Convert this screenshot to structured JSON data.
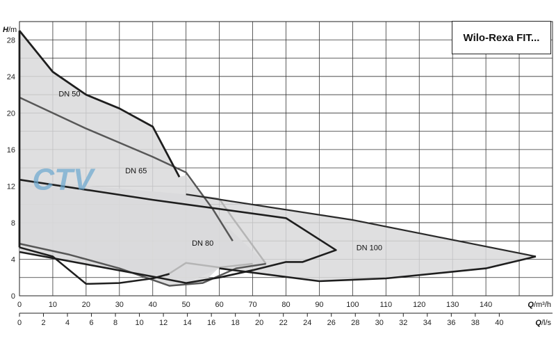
{
  "chart_data": {
    "type": "line",
    "title": "Wilo-Rexa FIT...",
    "y_axis": {
      "label_main": "H",
      "label_unit": "/m",
      "range": [
        0,
        30
      ],
      "ticks": [
        0,
        4,
        8,
        12,
        16,
        20,
        24,
        28
      ]
    },
    "x_axis_primary": {
      "label_main": "Q",
      "label_unit": "/m³/h",
      "range": [
        0,
        160
      ],
      "ticks": [
        0,
        10,
        20,
        30,
        40,
        50,
        60,
        70,
        80,
        90,
        100,
        110,
        120,
        130,
        140
      ]
    },
    "x_axis_secondary": {
      "label_main": "Q",
      "label_unit": "/l/s",
      "range": [
        0,
        44.44
      ],
      "ticks": [
        0,
        2,
        4,
        6,
        8,
        10,
        12,
        14,
        16,
        18,
        20,
        22,
        24,
        26,
        28,
        30,
        32,
        34,
        36,
        38,
        40
      ]
    },
    "grid": true,
    "watermark": "CTV",
    "series": [
      {
        "name": "DN 50",
        "color": "#1e1e1e",
        "upper": [
          [
            0,
            29
          ],
          [
            10,
            24.5
          ],
          [
            20,
            22
          ],
          [
            30,
            20.5
          ],
          [
            40,
            18.5
          ],
          [
            48,
            13
          ]
        ],
        "lower": [
          [
            0,
            5.3
          ],
          [
            10,
            4.3
          ],
          [
            20,
            1.3
          ],
          [
            30,
            1.4
          ],
          [
            40,
            1.9
          ],
          [
            45,
            2.4
          ]
        ]
      },
      {
        "name": "DN 65",
        "color": "#555555",
        "upper": [
          [
            0,
            21.7
          ],
          [
            20,
            18.3
          ],
          [
            40,
            15.2
          ],
          [
            50,
            13.5
          ],
          [
            58,
            9.5
          ],
          [
            64,
            6
          ]
        ],
        "lower": [
          [
            0,
            5.7
          ],
          [
            15,
            4.5
          ],
          [
            30,
            3.0
          ],
          [
            45,
            1.1
          ],
          [
            55,
            1.4
          ],
          [
            65,
            3.0
          ],
          [
            74,
            3.5
          ]
        ]
      },
      {
        "name": "DN 80",
        "color": "#aaaaaa",
        "upper": [
          [
            50,
            11.1
          ],
          [
            60,
            10.6
          ],
          [
            64,
            8.5
          ],
          [
            70,
            5.5
          ],
          [
            74,
            3.5
          ]
        ],
        "lower": [
          [
            50,
            3.6
          ],
          [
            60,
            3.1
          ],
          [
            70,
            3.5
          ]
        ]
      },
      {
        "name": "DN 100",
        "color": "#1e1e1e",
        "upper": [
          [
            0,
            12.7
          ],
          [
            40,
            10.5
          ],
          [
            80,
            8.5
          ],
          [
            95,
            5.0
          ],
          [
            85,
            3.7
          ],
          [
            60,
            2.0
          ],
          [
            50,
            1.4
          ],
          [
            40,
            2.1
          ],
          [
            0,
            4.8
          ]
        ],
        "lower": [
          [
            60,
            3.0
          ],
          [
            90,
            1.6
          ],
          [
            110,
            1.9
          ],
          [
            140,
            3.0
          ],
          [
            155,
            4.3
          ]
        ],
        "upper_ext": [
          [
            50,
            11.1
          ],
          [
            100,
            8.3
          ],
          [
            155,
            4.3
          ]
        ]
      }
    ],
    "region_labels": [
      {
        "text": "DN 50",
        "x": 15,
        "y": 21.8
      },
      {
        "text": "DN 65",
        "x": 35,
        "y": 13.4
      },
      {
        "text": "DN 80",
        "x": 55,
        "y": 5.5
      },
      {
        "text": "DN 100",
        "x": 105,
        "y": 5.0
      }
    ]
  }
}
